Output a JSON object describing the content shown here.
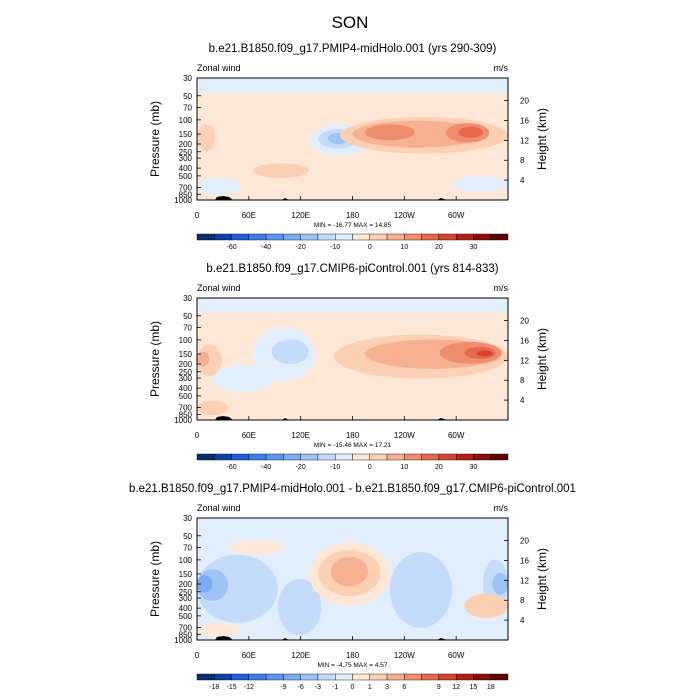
{
  "figure": {
    "title": "SON"
  },
  "chart_data": [
    {
      "type": "heatmap",
      "title": "b.e21.B1850.f09_g17.PMIP4-midHolo.001 (yrs 290-309)",
      "variable": "Zonal wind",
      "units": "m/s",
      "ylabel": "Pressure (mb)",
      "ylabel_right": "Height (km)",
      "x_ticks": [
        "0",
        "60E",
        "120E",
        "180",
        "120W",
        "60W"
      ],
      "y_ticks": [
        30,
        50,
        70,
        100,
        150,
        200,
        250,
        300,
        400,
        500,
        700,
        850,
        1000
      ],
      "height_ticks": [
        4,
        8,
        12,
        16,
        20
      ],
      "stats": "MIN = -16.77  MAX =  14.85",
      "colorbar": {
        "labels": [
          "-60",
          "-40",
          "-20",
          "-10",
          "0",
          "10",
          "20",
          "30"
        ],
        "colors": [
          "#08306b",
          "#0c3fa8",
          "#1f5fd9",
          "#3d7de8",
          "#5c95ef",
          "#7aabf3",
          "#9ec3f7",
          "#c4dbfa",
          "#e2eefc",
          "#fde8d8",
          "#fbd0b4",
          "#f6b092",
          "#ef8e6e",
          "#e6684d",
          "#d6432f",
          "#b42019",
          "#8a0d0d",
          "#5e0606"
        ]
      },
      "ylim": [
        1000,
        30
      ],
      "xlim": [
        0,
        360
      ]
    },
    {
      "type": "heatmap",
      "title": "b.e21.B1850.f09_g17.CMIP6-piControl.001 (yrs 814-833)",
      "variable": "Zonal wind",
      "units": "m/s",
      "ylabel": "Pressure (mb)",
      "ylabel_right": "Height (km)",
      "x_ticks": [
        "0",
        "60E",
        "120E",
        "180",
        "120W",
        "60W"
      ],
      "y_ticks": [
        30,
        50,
        70,
        100,
        150,
        200,
        250,
        300,
        400,
        500,
        700,
        850,
        1000
      ],
      "height_ticks": [
        4,
        8,
        12,
        16,
        20
      ],
      "stats": "MIN = -15.46  MAX =  17.21",
      "colorbar": {
        "labels": [
          "-60",
          "-40",
          "-20",
          "-10",
          "0",
          "10",
          "20",
          "30"
        ],
        "colors": [
          "#08306b",
          "#0c3fa8",
          "#1f5fd9",
          "#3d7de8",
          "#5c95ef",
          "#7aabf3",
          "#9ec3f7",
          "#c4dbfa",
          "#e2eefc",
          "#fde8d8",
          "#fbd0b4",
          "#f6b092",
          "#ef8e6e",
          "#e6684d",
          "#d6432f",
          "#b42019",
          "#8a0d0d",
          "#5e0606"
        ]
      },
      "ylim": [
        1000,
        30
      ],
      "xlim": [
        0,
        360
      ]
    },
    {
      "type": "heatmap",
      "title": "b.e21.B1850.f09_g17.PMIP4-midHolo.001 - b.e21.B1850.f09_g17.CMIP6-piControl.001",
      "variable": "Zonal wind",
      "units": "m/s",
      "ylabel": "Pressure (mb)",
      "ylabel_right": "Height (km)",
      "x_ticks": [
        "0",
        "60E",
        "120E",
        "180",
        "120W",
        "60W"
      ],
      "y_ticks": [
        30,
        50,
        70,
        100,
        150,
        200,
        250,
        300,
        400,
        500,
        700,
        850,
        1000
      ],
      "height_ticks": [
        4,
        8,
        12,
        16,
        20
      ],
      "stats": "MIN = -4.75  MAX =  4.57",
      "colorbar": {
        "labels": [
          "-18",
          "-15",
          "-12",
          "-9",
          "-6",
          "-3",
          "-1",
          "0",
          "1",
          "3",
          "6",
          "9",
          "12",
          "15",
          "18"
        ],
        "colors": [
          "#08306b",
          "#0c3fa8",
          "#1f5fd9",
          "#3d7de8",
          "#5c95ef",
          "#7aabf3",
          "#9ec3f7",
          "#c4dbfa",
          "#e2eefc",
          "#fde8d8",
          "#fbd0b4",
          "#f6b092",
          "#ef8e6e",
          "#e6684d",
          "#d6432f",
          "#b42019",
          "#8a0d0d",
          "#5e0606"
        ]
      },
      "ylim": [
        1000,
        30
      ],
      "xlim": [
        0,
        360
      ]
    }
  ]
}
